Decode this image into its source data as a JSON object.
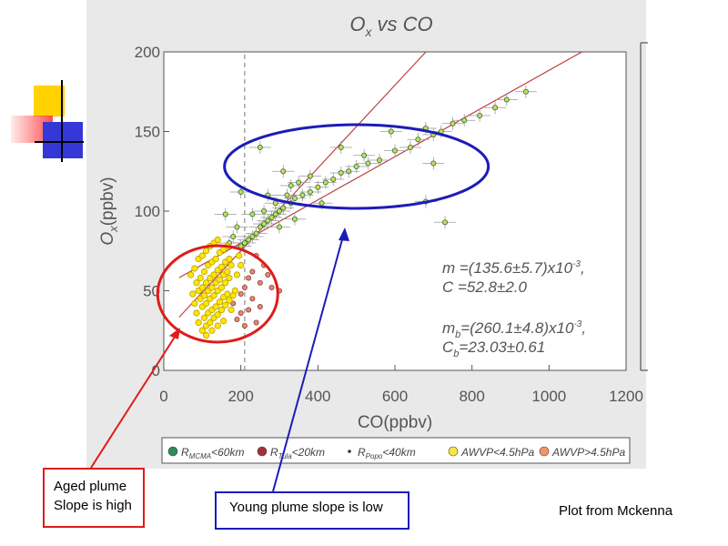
{
  "chart_data": {
    "type": "scatter",
    "title": "O_x vs CO",
    "title_main": "O",
    "title_sub": "x",
    "title_rest": " vs CO",
    "xlabel": "CO(ppbv)",
    "ylabel_main": "O",
    "ylabel_sub": "x",
    "ylabel_rest": "(ppbv)",
    "xlim": [
      0,
      1200
    ],
    "ylim": [
      0,
      200
    ],
    "x_ticks": [
      "0",
      "200",
      "400",
      "600",
      "800",
      "1000",
      "1200"
    ],
    "y_ticks": [
      "0",
      "50",
      "100",
      "150",
      "200"
    ],
    "vline_x": 210,
    "fit_lines": [
      {
        "slope": 0.1356,
        "intercept": 52.8,
        "color": "#c04040"
      },
      {
        "slope": 0.2601,
        "intercept": 23.03,
        "color": "#c04040"
      }
    ],
    "fit_text": {
      "m": {
        "pre": "m =(135.6±5.7)x10",
        "sup": "-3",
        "post": ","
      },
      "c": "C =52.8±2.0",
      "mb": {
        "pre": "m",
        "sub": "b",
        "mid": "=(260.1±4.8)x10",
        "sup": "-3",
        "post": ","
      },
      "cb": {
        "pre": "C",
        "sub": "b",
        "post": "=23.03±0.61"
      }
    },
    "legend": [
      {
        "label_pre": "R",
        "label_sub": "MCMA",
        "label_post": "<60km",
        "color": "#2e8b57",
        "marker": "circle"
      },
      {
        "label_pre": "R",
        "label_sub": "Tula",
        "label_post": "<20km",
        "color": "#a0303a",
        "marker": "circle"
      },
      {
        "label_pre": "R",
        "label_sub": "Popo",
        "label_post": "<40km",
        "color": "#333333",
        "marker": "dot"
      },
      {
        "label_pre": "AWVP<4.5hPa",
        "label_sub": "",
        "label_post": "",
        "color": "#f5e642",
        "marker": "circle"
      },
      {
        "label_pre": "AWVP>4.5hPa",
        "label_sub": "",
        "label_post": "",
        "color": "#f0956a",
        "marker": "circle"
      }
    ],
    "series": [
      {
        "group": "MCMA",
        "color": "#c8dc5a",
        "stroke": "#2e6b3a",
        "points": [
          [
            940,
            175
          ],
          [
            890,
            170
          ],
          [
            860,
            165
          ],
          [
            820,
            160
          ],
          [
            780,
            157
          ],
          [
            720,
            150
          ],
          [
            700,
            148
          ],
          [
            680,
            152
          ],
          [
            660,
            145
          ],
          [
            640,
            140
          ],
          [
            600,
            138
          ],
          [
            560,
            132
          ],
          [
            530,
            130
          ],
          [
            500,
            128
          ],
          [
            480,
            125
          ],
          [
            460,
            124
          ],
          [
            440,
            120
          ],
          [
            420,
            118
          ],
          [
            400,
            115
          ],
          [
            380,
            112
          ],
          [
            360,
            110
          ],
          [
            340,
            108
          ],
          [
            330,
            105
          ],
          [
            310,
            102
          ],
          [
            300,
            100
          ],
          [
            290,
            98
          ],
          [
            280,
            96
          ],
          [
            270,
            94
          ],
          [
            260,
            92
          ],
          [
            250,
            90
          ],
          [
            240,
            86
          ],
          [
            230,
            84
          ],
          [
            220,
            82
          ],
          [
            210,
            80
          ],
          [
            200,
            78
          ],
          [
            680,
            106
          ],
          [
            730,
            93
          ],
          [
            700,
            130
          ],
          [
            750,
            155
          ],
          [
            520,
            135
          ],
          [
            460,
            140
          ],
          [
            590,
            150
          ],
          [
            380,
            122
          ],
          [
            350,
            118
          ],
          [
            320,
            110
          ],
          [
            250,
            140
          ],
          [
            200,
            112
          ],
          [
            160,
            98
          ],
          [
            310,
            125
          ],
          [
            270,
            110
          ],
          [
            230,
            98
          ],
          [
            340,
            95
          ],
          [
            410,
            105
          ],
          [
            300,
            90
          ],
          [
            190,
            90
          ],
          [
            180,
            84
          ],
          [
            170,
            80
          ],
          [
            260,
            100
          ],
          [
            290,
            105
          ],
          [
            330,
            116
          ]
        ]
      },
      {
        "group": "Tula",
        "color": "#e58a6a",
        "stroke": "#8a3a3a",
        "points": [
          [
            240,
            72
          ],
          [
            260,
            66
          ],
          [
            230,
            62
          ],
          [
            270,
            60
          ],
          [
            250,
            55
          ],
          [
            220,
            58
          ],
          [
            210,
            52
          ],
          [
            200,
            48
          ],
          [
            230,
            45
          ],
          [
            250,
            40
          ],
          [
            220,
            38
          ],
          [
            200,
            36
          ],
          [
            180,
            42
          ],
          [
            280,
            52
          ],
          [
            300,
            50
          ],
          [
            240,
            30
          ],
          [
            210,
            28
          ],
          [
            190,
            32
          ]
        ]
      },
      {
        "group": "aged",
        "color": "#ffe600",
        "stroke": "#b8a000",
        "points": [
          [
            70,
            60
          ],
          [
            80,
            64
          ],
          [
            90,
            70
          ],
          [
            100,
            72
          ],
          [
            110,
            75
          ],
          [
            120,
            78
          ],
          [
            130,
            80
          ],
          [
            140,
            82
          ],
          [
            85,
            55
          ],
          [
            95,
            58
          ],
          [
            105,
            62
          ],
          [
            115,
            66
          ],
          [
            125,
            68
          ],
          [
            135,
            70
          ],
          [
            145,
            74
          ],
          [
            155,
            76
          ],
          [
            165,
            78
          ],
          [
            75,
            48
          ],
          [
            90,
            50
          ],
          [
            100,
            52
          ],
          [
            110,
            55
          ],
          [
            120,
            58
          ],
          [
            130,
            60
          ],
          [
            140,
            63
          ],
          [
            150,
            65
          ],
          [
            160,
            68
          ],
          [
            170,
            70
          ],
          [
            80,
            42
          ],
          [
            95,
            45
          ],
          [
            105,
            47
          ],
          [
            115,
            50
          ],
          [
            125,
            52
          ],
          [
            135,
            55
          ],
          [
            145,
            57
          ],
          [
            155,
            60
          ],
          [
            165,
            62
          ],
          [
            85,
            36
          ],
          [
            100,
            40
          ],
          [
            110,
            42
          ],
          [
            120,
            45
          ],
          [
            130,
            47
          ],
          [
            140,
            50
          ],
          [
            150,
            52
          ],
          [
            160,
            55
          ],
          [
            170,
            58
          ],
          [
            90,
            30
          ],
          [
            105,
            33
          ],
          [
            115,
            36
          ],
          [
            125,
            38
          ],
          [
            135,
            40
          ],
          [
            145,
            43
          ],
          [
            155,
            46
          ],
          [
            165,
            48
          ],
          [
            100,
            25
          ],
          [
            110,
            28
          ],
          [
            120,
            30
          ],
          [
            130,
            33
          ],
          [
            140,
            35
          ],
          [
            150,
            38
          ],
          [
            160,
            41
          ],
          [
            170,
            44
          ],
          [
            180,
            47
          ],
          [
            110,
            22
          ],
          [
            125,
            25
          ],
          [
            140,
            28
          ],
          [
            155,
            31
          ],
          [
            175,
            38
          ],
          [
            185,
            50
          ],
          [
            190,
            60
          ],
          [
            175,
            66
          ],
          [
            195,
            72
          ],
          [
            200,
            66
          ]
        ]
      }
    ],
    "annotations": [
      {
        "shape": "ellipse",
        "cx": 200,
        "cy": 48,
        "rx_units": 140,
        "ry_units": 30,
        "color": "#e01b1b",
        "label": "Aged plume"
      },
      {
        "shape": "ellipse",
        "cx": 500,
        "cy": 128,
        "rx_units": 340,
        "ry_units": 23,
        "color": "#1c1cb8",
        "label": "Young plume"
      }
    ]
  },
  "callouts": {
    "aged_line1": "Aged plume",
    "aged_line2": "Slope is high",
    "young": "Young plume slope is low"
  },
  "credit": "Plot from Mckenna",
  "colors": {
    "red_annot": "#e01b1b",
    "blue_annot": "#1c1cb8",
    "fit_line": "#c04040",
    "plot_bg": "#e9e9e9"
  }
}
